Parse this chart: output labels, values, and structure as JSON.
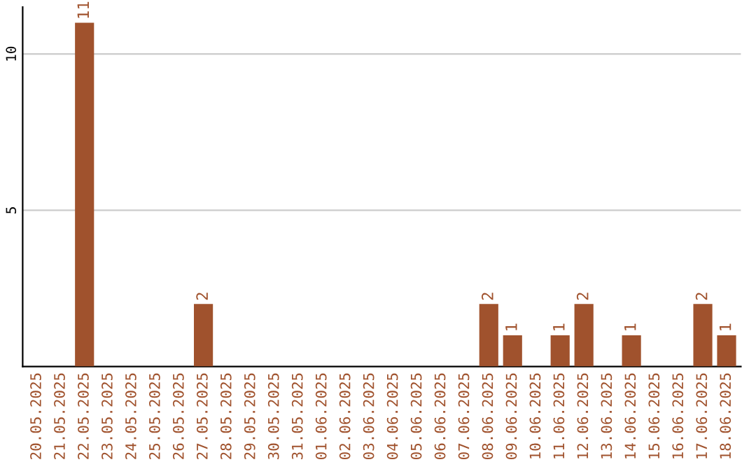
{
  "chart_data": {
    "type": "bar",
    "categories": [
      "20.05.2025",
      "21.05.2025",
      "22.05.2025",
      "23.05.2025",
      "24.05.2025",
      "25.05.2025",
      "26.05.2025",
      "27.05.2025",
      "28.05.2025",
      "29.05.2025",
      "30.05.2025",
      "31.05.2025",
      "01.06.2025",
      "02.06.2025",
      "03.06.2025",
      "04.06.2025",
      "05.06.2025",
      "06.06.2025",
      "07.06.2025",
      "08.06.2025",
      "09.06.2025",
      "10.06.2025",
      "11.06.2025",
      "12.06.2025",
      "13.06.2025",
      "14.06.2025",
      "15.06.2025",
      "16.06.2025",
      "17.06.2025",
      "18.06.2025"
    ],
    "values": [
      0,
      0,
      11,
      0,
      0,
      0,
      0,
      2,
      0,
      0,
      0,
      0,
      0,
      0,
      0,
      0,
      0,
      0,
      0,
      2,
      1,
      0,
      1,
      2,
      0,
      1,
      0,
      0,
      2,
      1
    ],
    "value_labels": [
      null,
      null,
      "11",
      null,
      null,
      null,
      null,
      "2",
      null,
      null,
      null,
      null,
      null,
      null,
      null,
      null,
      null,
      null,
      null,
      "2",
      "1",
      null,
      "1",
      "2",
      null,
      "1",
      null,
      null,
      "2",
      "1"
    ],
    "color": "#a0522d",
    "ylim": [
      0,
      11.5
    ],
    "yticks": [
      5,
      10
    ],
    "grid": "y"
  }
}
